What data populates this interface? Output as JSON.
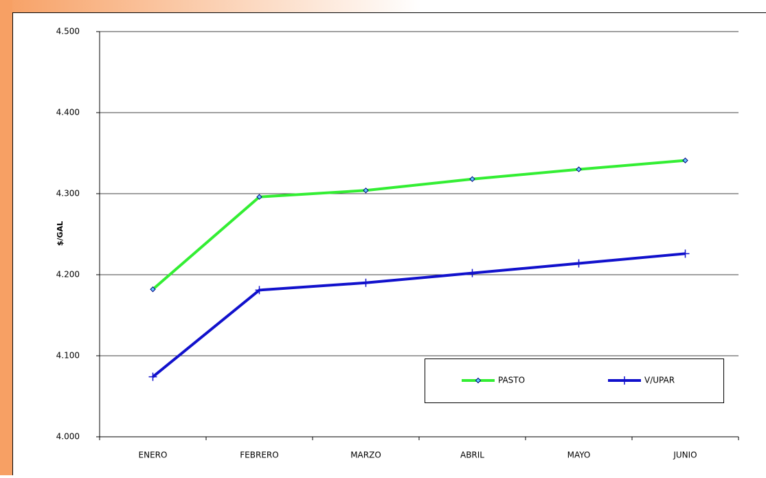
{
  "chart_data": {
    "type": "line",
    "y_label": "$/GAL",
    "categories": [
      "ENERO",
      "FEBRERO",
      "MARZO",
      "ABRIL",
      "MAYO",
      "JUNIO"
    ],
    "series": [
      {
        "name": "PASTO",
        "color": "#33ee33",
        "marker": "diamond",
        "values": [
          4182,
          4296,
          4304,
          4318,
          4330,
          4341
        ]
      },
      {
        "name": "V/UPAR",
        "color": "#1111cc",
        "marker": "plus",
        "values": [
          4074,
          4181,
          4190,
          4202,
          4214,
          4226
        ]
      }
    ],
    "ylim": [
      4000,
      4500
    ],
    "yticks": [
      {
        "value": 4000,
        "label": "4.000"
      },
      {
        "value": 4100,
        "label": "4.100"
      },
      {
        "value": 4200,
        "label": "4.200"
      },
      {
        "value": 4300,
        "label": "4.300"
      },
      {
        "value": 4400,
        "label": "4.400"
      },
      {
        "value": 4500,
        "label": "4.500"
      }
    ],
    "grid": true,
    "legend": "lower right"
  }
}
